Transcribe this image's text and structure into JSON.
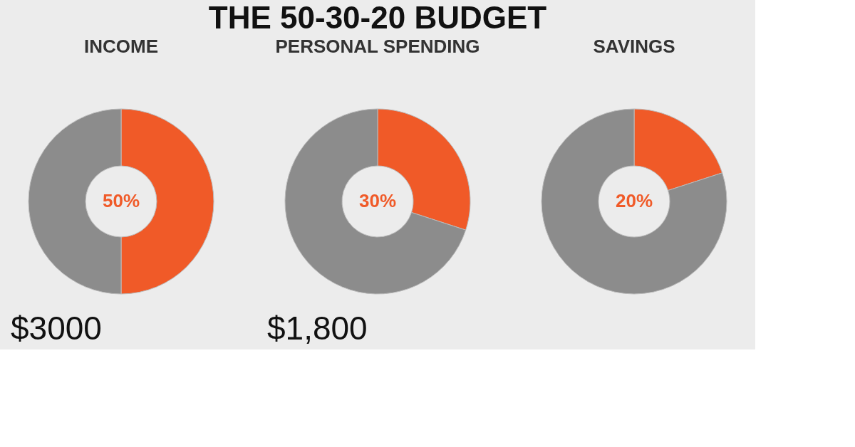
{
  "chart_data": [
    {
      "type": "other",
      "title": "THE 50-30-20 BUDGET"
    },
    {
      "type": "donut",
      "title": "INCOME",
      "categories": [
        null,
        null
      ],
      "values": [
        50,
        50
      ],
      "colors": [
        "#f05a28",
        "#8c8c8c"
      ],
      "annotations": [
        "50%",
        "$3000"
      ]
    },
    {
      "type": "donut",
      "title": "PERSONAL SPENDING",
      "categories": [
        null,
        null
      ],
      "values": [
        30,
        70
      ],
      "colors": [
        "#f05a28",
        "#8c8c8c"
      ],
      "annotations": [
        "30%",
        "$1,800"
      ]
    },
    {
      "type": "donut",
      "title": "SAVINGS",
      "categories": [
        null,
        null
      ],
      "values": [
        20,
        80
      ],
      "colors": [
        "#f05a28",
        "#8c8c8c"
      ],
      "annotations": [
        "20%"
      ]
    }
  ]
}
